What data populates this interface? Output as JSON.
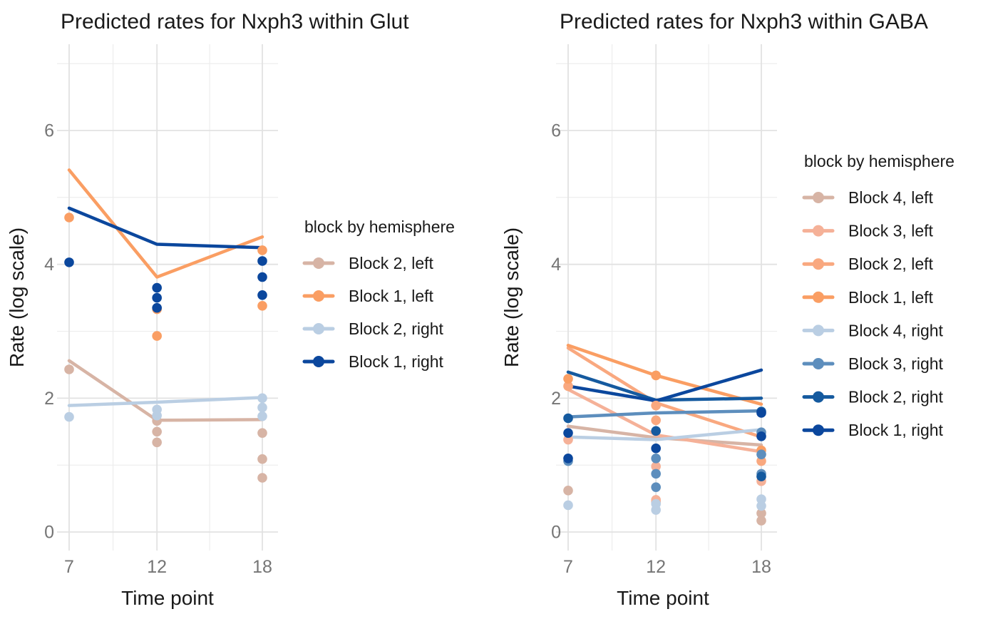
{
  "figure": {
    "background": "#ffffff",
    "grid_color_major": "#e2e2e2",
    "grid_color_minor": "#ececec",
    "tick_label_color": "#757575"
  },
  "chart_data": [
    {
      "type": "line",
      "title": "Predicted rates for Nxph3 within Glut",
      "xlabel": "Time point",
      "ylabel": "Rate (log scale)",
      "x_ticks": [
        7,
        12,
        18
      ],
      "x_minor_ticks": [
        9.5,
        15
      ],
      "y_ticks": [
        0,
        2,
        4,
        6
      ],
      "y_minor_ticks": [
        1,
        3,
        5,
        7
      ],
      "xlim": [
        6.3,
        18.9
      ],
      "ylim": [
        -0.28,
        7.32
      ],
      "grid": true,
      "legend_position": "right",
      "legend_title": "block by hemisphere",
      "series": [
        {
          "name": "Block 2, left",
          "color": "#D7B4A5",
          "line": [
            [
              7,
              2.56
            ],
            [
              12,
              1.67
            ],
            [
              18,
              1.68
            ]
          ],
          "points": [
            [
              7,
              2.43
            ],
            [
              12,
              1.66
            ],
            [
              12,
              1.5
            ],
            [
              12,
              1.34
            ],
            [
              18,
              1.48
            ],
            [
              18,
              1.09
            ],
            [
              18,
              0.81
            ]
          ]
        },
        {
          "name": "Block 1, left",
          "color": "#FA9E63",
          "line": [
            [
              7,
              5.41
            ],
            [
              12,
              3.81
            ],
            [
              18,
              4.41
            ]
          ],
          "points": [
            [
              7,
              4.7
            ],
            [
              12,
              3.33
            ],
            [
              12,
              2.93
            ],
            [
              18,
              4.21
            ],
            [
              18,
              3.38
            ]
          ]
        },
        {
          "name": "Block 2, right",
          "color": "#BACEE3",
          "line": [
            [
              7,
              1.89
            ],
            [
              12,
              1.94
            ],
            [
              18,
              2.01
            ]
          ],
          "points": [
            [
              7,
              1.72
            ],
            [
              12,
              1.83
            ],
            [
              12,
              1.74
            ],
            [
              18,
              2.0
            ],
            [
              18,
              1.86
            ],
            [
              18,
              1.73
            ]
          ]
        },
        {
          "name": "Block 1, right",
          "color": "#0B479D",
          "line": [
            [
              7,
              4.84
            ],
            [
              12,
              4.3
            ],
            [
              18,
              4.25
            ]
          ],
          "points": [
            [
              7,
              4.03
            ],
            [
              12,
              3.65
            ],
            [
              12,
              3.5
            ],
            [
              12,
              3.35
            ],
            [
              18,
              4.05
            ],
            [
              18,
              3.81
            ],
            [
              18,
              3.54
            ]
          ]
        }
      ]
    },
    {
      "type": "line",
      "title": "Predicted rates for Nxph3 within GABA",
      "xlabel": "Time point",
      "ylabel": "Rate (log scale)",
      "x_ticks": [
        7,
        12,
        18
      ],
      "x_minor_ticks": [
        9.5,
        15
      ],
      "y_ticks": [
        0,
        2,
        4,
        6
      ],
      "y_minor_ticks": [
        1,
        3,
        5,
        7
      ],
      "xlim": [
        6.3,
        18.9
      ],
      "ylim": [
        -0.28,
        7.32
      ],
      "grid": true,
      "legend_position": "right",
      "legend_title": "block by hemisphere",
      "series": [
        {
          "name": "Block 4, left",
          "color": "#D7B4A5",
          "line": [
            [
              7,
              1.58
            ],
            [
              12,
              1.41
            ],
            [
              18,
              1.3
            ]
          ],
          "points": [
            [
              7,
              0.62
            ],
            [
              12,
              0.45
            ],
            [
              18,
              0.28
            ],
            [
              18,
              0.17
            ]
          ]
        },
        {
          "name": "Block 3, left",
          "color": "#F5B198",
          "line": [
            [
              7,
              2.13
            ],
            [
              12,
              1.45
            ],
            [
              18,
              1.2
            ]
          ],
          "points": [
            [
              7,
              1.38
            ],
            [
              12,
              0.98
            ],
            [
              12,
              0.48
            ],
            [
              18,
              0.76
            ]
          ]
        },
        {
          "name": "Block 2, left",
          "color": "#F9A87F",
          "line": [
            [
              7,
              2.75
            ],
            [
              12,
              1.93
            ],
            [
              18,
              1.42
            ]
          ],
          "points": [
            [
              7,
              2.18
            ],
            [
              12,
              1.89
            ],
            [
              12,
              1.67
            ],
            [
              18,
              1.06
            ]
          ]
        },
        {
          "name": "Block 1, left",
          "color": "#FA9E63",
          "line": [
            [
              7,
              2.79
            ],
            [
              12,
              2.34
            ],
            [
              18,
              1.91
            ]
          ],
          "points": [
            [
              7,
              2.29
            ],
            [
              12,
              2.34
            ],
            [
              18,
              1.22
            ]
          ]
        },
        {
          "name": "Block 4, right",
          "color": "#BACEE3",
          "line": [
            [
              7,
              1.42
            ],
            [
              12,
              1.38
            ],
            [
              18,
              1.53
            ]
          ],
          "points": [
            [
              7,
              0.4
            ],
            [
              12,
              0.42
            ],
            [
              12,
              0.33
            ],
            [
              18,
              0.49
            ],
            [
              18,
              0.39
            ]
          ]
        },
        {
          "name": "Block 3, right",
          "color": "#5D8EBD",
          "line": [
            [
              7,
              1.72
            ],
            [
              12,
              1.78
            ],
            [
              18,
              1.81
            ]
          ],
          "points": [
            [
              7,
              1.06
            ],
            [
              12,
              1.1
            ],
            [
              12,
              0.87
            ],
            [
              12,
              0.67
            ],
            [
              18,
              1.49
            ],
            [
              18,
              1.16
            ],
            [
              18,
              0.87
            ]
          ]
        },
        {
          "name": "Block 2, right",
          "color": "#155A9F",
          "line": [
            [
              7,
              2.39
            ],
            [
              12,
              1.97
            ],
            [
              18,
              2.0
            ]
          ],
          "points": [
            [
              7,
              1.7
            ],
            [
              12,
              1.51
            ],
            [
              18,
              1.8
            ],
            [
              18,
              0.83
            ]
          ]
        },
        {
          "name": "Block 1, right",
          "color": "#0B479D",
          "line": [
            [
              7,
              2.18
            ],
            [
              12,
              1.96
            ],
            [
              18,
              2.42
            ]
          ],
          "points": [
            [
              7,
              1.48
            ],
            [
              7,
              1.1
            ],
            [
              12,
              1.25
            ],
            [
              18,
              1.78
            ],
            [
              18,
              1.43
            ]
          ]
        }
      ]
    }
  ]
}
